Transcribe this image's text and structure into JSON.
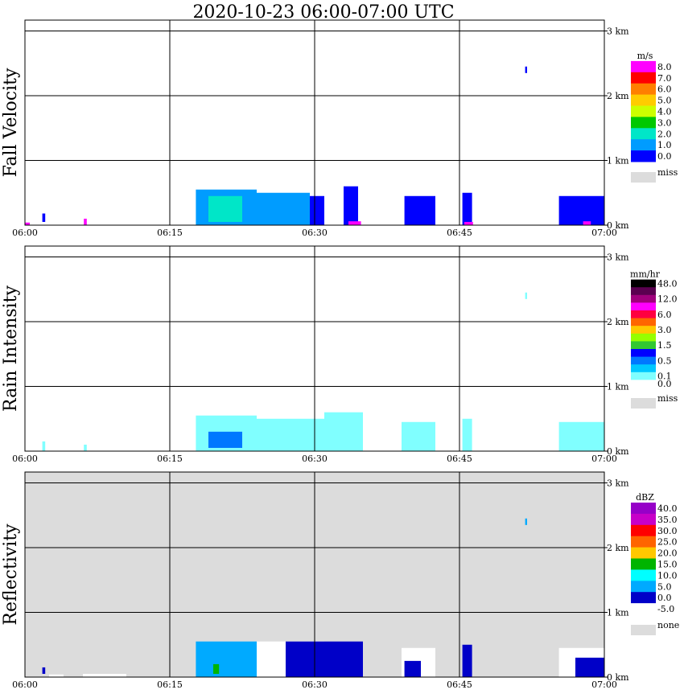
{
  "title": "2020-10-23   06:00-07:00 UTC",
  "x_ticks": [
    "06:00",
    "06:15",
    "06:30",
    "06:45",
    "07:00"
  ],
  "y_ticks": [
    "0 km",
    "1 km",
    "2 km",
    "3 km"
  ],
  "colors": {
    "grid": "#000000",
    "missing_bg": "#dcdcdc",
    "white": "#ffffff"
  },
  "panels": [
    {
      "key": "fall",
      "ylabel": "Fall Velocity",
      "unit": "m/s",
      "colorbar": [
        {
          "label": "8.0",
          "color": "#ff00ff"
        },
        {
          "label": "7.0",
          "color": "#ff0000"
        },
        {
          "label": "6.0",
          "color": "#ff7f00"
        },
        {
          "label": "5.0",
          "color": "#ffcc00"
        },
        {
          "label": "4.0",
          "color": "#ccff00"
        },
        {
          "label": "3.0",
          "color": "#00c800"
        },
        {
          "label": "2.0",
          "color": "#00e6c8"
        },
        {
          "label": "1.0",
          "color": "#009cff"
        },
        {
          "label": "0.0",
          "color": "#0000ff"
        }
      ],
      "missing_label": "miss",
      "missing_bg": false
    },
    {
      "key": "rain",
      "ylabel": "Rain Intensity",
      "unit": "mm/hr",
      "colorbar": [
        {
          "label": "48.0",
          "color": "#000000"
        },
        {
          "label": "",
          "color": "#5a0050"
        },
        {
          "label": "12.0",
          "color": "#a0007d"
        },
        {
          "label": "",
          "color": "#ff00ff"
        },
        {
          "label": "6.0",
          "color": "#ff0040"
        },
        {
          "label": "",
          "color": "#ff6600"
        },
        {
          "label": "3.0",
          "color": "#ffc800"
        },
        {
          "label": "",
          "color": "#96ff00"
        },
        {
          "label": "1.5",
          "color": "#32c832"
        },
        {
          "label": "",
          "color": "#0000ff"
        },
        {
          "label": "0.5",
          "color": "#0078ff"
        },
        {
          "label": "",
          "color": "#00c8ff"
        },
        {
          "label": "0.1",
          "color": "#80ffff"
        },
        {
          "label": "0.0",
          "color": "#ffffff"
        }
      ],
      "missing_label": "miss",
      "missing_bg": false
    },
    {
      "key": "refl",
      "ylabel": "Reflectivity",
      "unit": "dBZ",
      "colorbar": [
        {
          "label": "40.0",
          "color": "#9600c8"
        },
        {
          "label": "35.0",
          "color": "#c800c8"
        },
        {
          "label": "30.0",
          "color": "#ff0000"
        },
        {
          "label": "25.0",
          "color": "#ff6400"
        },
        {
          "label": "20.0",
          "color": "#ffc800"
        },
        {
          "label": "15.0",
          "color": "#00b400"
        },
        {
          "label": "10.0",
          "color": "#00ffff"
        },
        {
          "label": "5.0",
          "color": "#00aaff"
        },
        {
          "label": "0.0",
          "color": "#0000c8"
        },
        {
          "label": "-5.0",
          "color": "#ffffff"
        }
      ],
      "missing_label": "none",
      "missing_bg": true
    }
  ],
  "chart_data": [
    {
      "type": "heatmap",
      "title": "Fall Velocity",
      "unit": "m/s",
      "x_range_min": [
        0,
        60
      ],
      "y_range_km": [
        0,
        3.2
      ],
      "echoes": [
        {
          "t0": 0.0,
          "t1": 0.5,
          "h0": 0.0,
          "h1": 0.04,
          "value": 8.0
        },
        {
          "t0": 1.8,
          "t1": 2.1,
          "h0": 0.05,
          "h1": 0.18,
          "value": 0.5
        },
        {
          "t0": 6.1,
          "t1": 6.4,
          "h0": 0.0,
          "h1": 0.1,
          "value": 8.0
        },
        {
          "t0": 17.7,
          "t1": 24.0,
          "h0": 0.0,
          "h1": 0.55,
          "value": 1.8
        },
        {
          "t0": 19.0,
          "t1": 22.5,
          "h0": 0.05,
          "h1": 0.45,
          "value": 2.3
        },
        {
          "t0": 24.0,
          "t1": 29.5,
          "h0": 0.0,
          "h1": 0.5,
          "value": 1.0
        },
        {
          "t0": 29.5,
          "t1": 31.0,
          "h0": 0.0,
          "h1": 0.45,
          "value": 0.6
        },
        {
          "t0": 33.0,
          "t1": 34.5,
          "h0": 0.0,
          "h1": 0.6,
          "value": 0.5
        },
        {
          "t0": 33.5,
          "t1": 34.8,
          "h0": 0.0,
          "h1": 0.06,
          "value": 8.0
        },
        {
          "t0": 39.3,
          "t1": 42.5,
          "h0": 0.0,
          "h1": 0.45,
          "value": 0.3
        },
        {
          "t0": 45.3,
          "t1": 46.3,
          "h0": 0.0,
          "h1": 0.5,
          "value": 0.4
        },
        {
          "t0": 45.5,
          "t1": 46.4,
          "h0": 0.0,
          "h1": 0.05,
          "value": 8.0
        },
        {
          "t0": 51.8,
          "t1": 52.0,
          "h0": 2.35,
          "h1": 2.45,
          "value": 0.6
        },
        {
          "t0": 55.3,
          "t1": 60.0,
          "h0": 0.0,
          "h1": 0.45,
          "value": 0.3
        },
        {
          "t0": 57.8,
          "t1": 58.6,
          "h0": 0.0,
          "h1": 0.06,
          "value": 8.0
        }
      ]
    },
    {
      "type": "heatmap",
      "title": "Rain Intensity",
      "unit": "mm/hr",
      "x_range_min": [
        0,
        60
      ],
      "y_range_km": [
        0,
        3.2
      ],
      "echoes": [
        {
          "t0": 1.8,
          "t1": 2.1,
          "h0": 0.0,
          "h1": 0.15,
          "value": 0.1
        },
        {
          "t0": 6.1,
          "t1": 6.4,
          "h0": 0.0,
          "h1": 0.1,
          "value": 0.1
        },
        {
          "t0": 17.7,
          "t1": 24.0,
          "h0": 0.0,
          "h1": 0.55,
          "value": 0.2
        },
        {
          "t0": 19.0,
          "t1": 22.5,
          "h0": 0.05,
          "h1": 0.3,
          "value": 0.5
        },
        {
          "t0": 24.0,
          "t1": 31.0,
          "h0": 0.0,
          "h1": 0.5,
          "value": 0.1
        },
        {
          "t0": 31.0,
          "t1": 35.0,
          "h0": 0.0,
          "h1": 0.6,
          "value": 0.1
        },
        {
          "t0": 39.0,
          "t1": 42.5,
          "h0": 0.0,
          "h1": 0.45,
          "value": 0.1
        },
        {
          "t0": 45.3,
          "t1": 46.3,
          "h0": 0.0,
          "h1": 0.5,
          "value": 0.1
        },
        {
          "t0": 51.8,
          "t1": 52.0,
          "h0": 2.35,
          "h1": 2.45,
          "value": 0.1
        },
        {
          "t0": 55.3,
          "t1": 60.0,
          "h0": 0.0,
          "h1": 0.45,
          "value": 0.1
        }
      ]
    },
    {
      "type": "heatmap",
      "title": "Reflectivity",
      "unit": "dBZ",
      "x_range_min": [
        0,
        60
      ],
      "y_range_km": [
        0,
        3.2
      ],
      "echoes": [
        {
          "t0": 1.8,
          "t1": 2.1,
          "h0": 0.05,
          "h1": 0.15,
          "value": 0.0
        },
        {
          "t0": 2.5,
          "t1": 4.0,
          "h0": 0.0,
          "h1": 0.04,
          "value": -5.0
        },
        {
          "t0": 6.0,
          "t1": 10.5,
          "h0": 0.0,
          "h1": 0.05,
          "value": -5.0
        },
        {
          "t0": 17.7,
          "t1": 24.0,
          "h0": 0.0,
          "h1": 0.55,
          "value": 6.0
        },
        {
          "t0": 19.0,
          "t1": 22.5,
          "h0": 0.05,
          "h1": 0.3,
          "value": 9.0
        },
        {
          "t0": 19.5,
          "t1": 20.1,
          "h0": 0.05,
          "h1": 0.2,
          "value": 15.0
        },
        {
          "t0": 24.0,
          "t1": 31.0,
          "h0": 0.0,
          "h1": 0.55,
          "value": -5.0
        },
        {
          "t0": 27.0,
          "t1": 31.0,
          "h0": 0.0,
          "h1": 0.55,
          "value": 2.0
        },
        {
          "t0": 31.0,
          "t1": 35.0,
          "h0": 0.0,
          "h1": 0.55,
          "value": 0.5
        },
        {
          "t0": 39.0,
          "t1": 42.5,
          "h0": 0.0,
          "h1": 0.45,
          "value": -5.0
        },
        {
          "t0": 39.3,
          "t1": 41.0,
          "h0": 0.0,
          "h1": 0.25,
          "value": 0.0
        },
        {
          "t0": 45.3,
          "t1": 46.3,
          "h0": 0.0,
          "h1": 0.5,
          "value": 0.0
        },
        {
          "t0": 51.8,
          "t1": 52.0,
          "h0": 2.35,
          "h1": 2.45,
          "value": 5.0
        },
        {
          "t0": 55.3,
          "t1": 60.0,
          "h0": 0.0,
          "h1": 0.45,
          "value": -5.0
        },
        {
          "t0": 57.0,
          "t1": 60.0,
          "h0": 0.0,
          "h1": 0.3,
          "value": 0.0
        }
      ]
    }
  ]
}
